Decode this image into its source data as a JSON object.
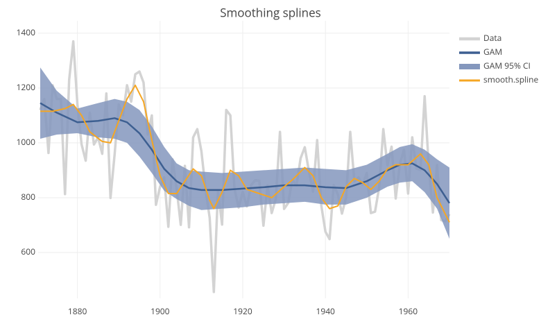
{
  "chart_data": {
    "type": "line",
    "title": "Smoothing splines",
    "xlim": [
      1870.5,
      1970
    ],
    "ylim": [
      433,
      1445
    ],
    "xticks": [
      1880,
      1900,
      1920,
      1940,
      1960
    ],
    "yticks": [
      600,
      800,
      1000,
      1200,
      1400
    ],
    "grid": true,
    "legend": "right",
    "series": [
      {
        "name": "Data",
        "type": "line",
        "color": "#d3d3d3",
        "width": 3.5,
        "x": [
          1871,
          1872,
          1873,
          1874,
          1875,
          1876,
          1877,
          1878,
          1879,
          1880,
          1881,
          1882,
          1883,
          1884,
          1885,
          1886,
          1887,
          1888,
          1889,
          1890,
          1891,
          1892,
          1893,
          1894,
          1895,
          1896,
          1897,
          1898,
          1899,
          1900,
          1901,
          1902,
          1903,
          1904,
          1905,
          1906,
          1907,
          1908,
          1909,
          1910,
          1911,
          1912,
          1913,
          1914,
          1915,
          1916,
          1917,
          1918,
          1919,
          1920,
          1921,
          1922,
          1923,
          1924,
          1925,
          1926,
          1927,
          1928,
          1929,
          1930,
          1931,
          1932,
          1933,
          1934,
          1935,
          1936,
          1937,
          1938,
          1939,
          1940,
          1941,
          1942,
          1943,
          1944,
          1945,
          1946,
          1947,
          1948,
          1949,
          1950,
          1951,
          1952,
          1953,
          1954,
          1955,
          1956,
          1957,
          1958,
          1959,
          1960,
          1961,
          1962,
          1963,
          1964,
          1965,
          1966,
          1967,
          1968,
          1969,
          1970
        ],
        "values": [
          1120,
          1160,
          963,
          1210,
          1160,
          1160,
          813,
          1230,
          1370,
          1140,
          995,
          935,
          1110,
          994,
          1020,
          960,
          1180,
          799,
          958,
          1140,
          1100,
          1210,
          1150,
          1250,
          1260,
          1220,
          1030,
          1100,
          774,
          840,
          874,
          694,
          940,
          833,
          701,
          916,
          692,
          1020,
          1050,
          969,
          831,
          726,
          456,
          824,
          702,
          1120,
          1100,
          832,
          764,
          821,
          768,
          845,
          864,
          862,
          698,
          845,
          744,
          796,
          1040,
          759,
          781,
          865,
          845,
          944,
          984,
          897,
          822,
          1010,
          771,
          676,
          649,
          846,
          812,
          742,
          801,
          1040,
          860,
          874,
          848,
          890,
          744,
          749,
          838,
          1050,
          918,
          986,
          797,
          923,
          975,
          815,
          1020,
          906,
          901,
          1170,
          912,
          746,
          919,
          718,
          714,
          740
        ]
      },
      {
        "name": "GAM",
        "type": "line",
        "color": "#3d5f91",
        "width": 2.5,
        "x": [
          1871,
          1875,
          1880,
          1885,
          1889,
          1892,
          1895,
          1898,
          1901,
          1904,
          1907,
          1910,
          1915,
          1920,
          1925,
          1930,
          1935,
          1940,
          1945,
          1950,
          1955,
          1958,
          1961,
          1964,
          1967,
          1970
        ],
        "values": [
          1145,
          1110,
          1075,
          1080,
          1090,
          1075,
          1035,
          975,
          905,
          860,
          835,
          828,
          828,
          833,
          838,
          845,
          845,
          838,
          835,
          860,
          900,
          920,
          925,
          900,
          850,
          780
        ]
      },
      {
        "name": "GAM 95% CI",
        "type": "band",
        "color": "#8497bd",
        "x": [
          1871,
          1875,
          1880,
          1885,
          1889,
          1892,
          1895,
          1898,
          1901,
          1904,
          1907,
          1910,
          1915,
          1920,
          1925,
          1930,
          1935,
          1940,
          1945,
          1950,
          1955,
          1958,
          1961,
          1964,
          1967,
          1970
        ],
        "lower": [
          1015,
          1030,
          1035,
          1020,
          1015,
          1000,
          950,
          890,
          825,
          795,
          770,
          755,
          760,
          765,
          775,
          780,
          785,
          775,
          775,
          800,
          840,
          855,
          860,
          820,
          760,
          650
        ],
        "upper": [
          1275,
          1190,
          1125,
          1145,
          1160,
          1150,
          1120,
          1060,
          985,
          925,
          900,
          895,
          890,
          895,
          900,
          905,
          910,
          905,
          900,
          920,
          960,
          985,
          995,
          975,
          940,
          910
        ]
      },
      {
        "name": "smooth.spline",
        "type": "line",
        "color": "#f5a623",
        "width": 2,
        "x": [
          1871,
          1874,
          1877,
          1879,
          1881,
          1883,
          1886,
          1888,
          1890,
          1892,
          1894,
          1896,
          1898,
          1900,
          1902,
          1904,
          1906,
          1908,
          1910,
          1912,
          1913,
          1915,
          1917,
          1919,
          1921,
          1924,
          1927,
          1930,
          1932,
          1935,
          1937,
          1939,
          1941,
          1943,
          1945,
          1947,
          1949,
          1951,
          1953,
          1955,
          1957,
          1960,
          1963,
          1965,
          1967,
          1969,
          1970
        ],
        "values": [
          1115,
          1115,
          1125,
          1140,
          1100,
          1040,
          1005,
          1000,
          1080,
          1160,
          1210,
          1150,
          1010,
          880,
          815,
          815,
          860,
          905,
          880,
          790,
          760,
          820,
          900,
          880,
          830,
          815,
          800,
          840,
          865,
          910,
          880,
          800,
          760,
          770,
          840,
          870,
          855,
          830,
          860,
          905,
          920,
          920,
          960,
          920,
          800,
          740,
          710
        ]
      }
    ]
  }
}
